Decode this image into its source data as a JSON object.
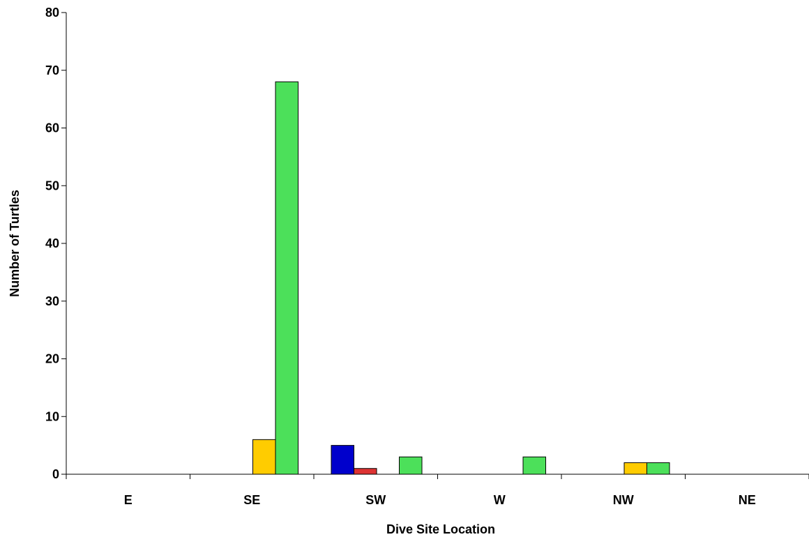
{
  "chart_data": {
    "type": "bar",
    "xlabel": "Dive Site Location",
    "ylabel": "Number of Turtles",
    "ylim": [
      0,
      80
    ],
    "yticks": [
      0,
      10,
      20,
      30,
      40,
      50,
      60,
      70,
      80
    ],
    "grid": false,
    "legend": "none",
    "categories": [
      "E",
      "SE",
      "SW",
      "W",
      "NW",
      "NE"
    ],
    "series": [
      {
        "color": "#0000CC",
        "values": [
          0,
          0,
          5,
          0,
          0,
          0
        ]
      },
      {
        "color": "#DD3333",
        "values": [
          0,
          0,
          1,
          0,
          0,
          0
        ]
      },
      {
        "color": "#FFCC00",
        "values": [
          0,
          6,
          0,
          0,
          2,
          0
        ]
      },
      {
        "color": "#4CE05A",
        "values": [
          0,
          68,
          3,
          3,
          2,
          0
        ]
      }
    ]
  }
}
